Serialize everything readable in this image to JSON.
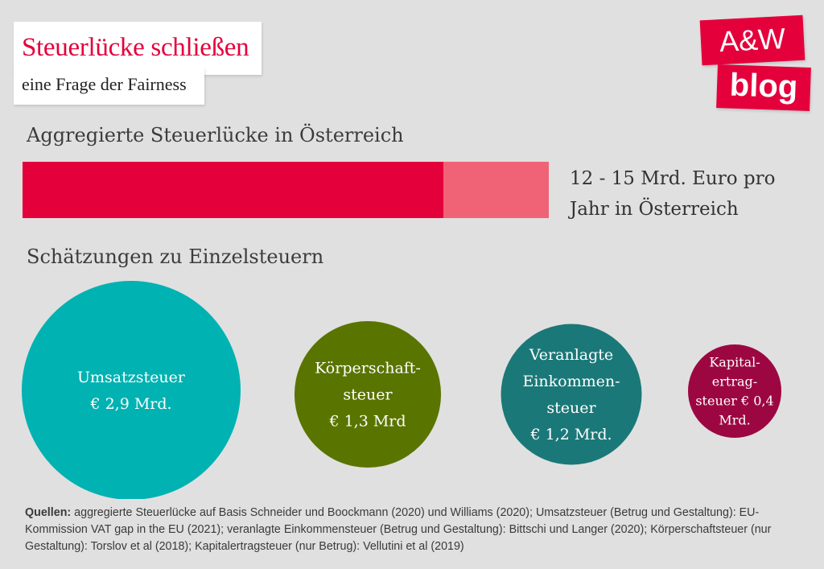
{
  "header": {
    "title": "Steuerlücke schließen",
    "subtitle": "eine Frage der Fairness"
  },
  "logo": {
    "line1": "A&W",
    "line2": "blog"
  },
  "aggregate": {
    "heading": "Aggregierte Steuerlücke in Österreich",
    "label_line1": "12 - 15 Mrd. Euro pro",
    "label_line2": "Jahr in Österreich"
  },
  "estimates": {
    "heading": "Schätzungen zu Einzelsteuern"
  },
  "sources": {
    "label": "Quellen:",
    "text": " aggregierte Steuerlücke auf Basis Schneider und Boockmann (2020) und Williams (2020); Umsatzsteuer (Betrug und Gestaltung): EU-Kommission VAT gap in the EU (2021); veranlagte Einkommensteuer (Betrug und Gestaltung): Bittschi und Langer (2020); Körperschaftsteuer (nur Gestaltung): Torslov et al (2018); Kapitalertragsteuer (nur Betrug): Vellutini et al (2019)"
  },
  "colors": {
    "accent": "#e4003b",
    "accent_light": "#f06377",
    "umsatz": "#00b2b2",
    "koerper": "#5a7400",
    "einkommen": "#1b7878",
    "kapital": "#9c0742"
  },
  "chart_data": [
    {
      "type": "bar",
      "orientation": "horizontal",
      "title": "Aggregierte Steuerlücke in Österreich",
      "unit": "Mrd. Euro pro Jahr",
      "range": [
        12,
        15
      ],
      "segments": [
        {
          "value": 12,
          "color": "#e4003b"
        },
        {
          "value": 3,
          "color": "#f06377"
        }
      ],
      "xlim": [
        0,
        15
      ]
    },
    {
      "type": "scatter",
      "subtype": "bubble",
      "title": "Schätzungen zu Einzelsteuern",
      "unit": "Mrd. Euro",
      "items": [
        {
          "lines": [
            "Umsatzsteuer",
            "€ 2,9 Mrd."
          ],
          "value": 2.9,
          "color": "#00b2b2"
        },
        {
          "lines": [
            "Körperschaft-",
            "steuer",
            "€ 1,3 Mrd"
          ],
          "value": 1.3,
          "color": "#5a7400"
        },
        {
          "lines": [
            "Veranlagte",
            "Einkommen-",
            "steuer",
            "€ 1,2 Mrd."
          ],
          "value": 1.2,
          "color": "#1b7878"
        },
        {
          "lines": [
            "Kapital-",
            "ertrag-",
            "steuer € 0,4",
            "Mrd."
          ],
          "value": 0.4,
          "color": "#9c0742"
        }
      ]
    }
  ]
}
